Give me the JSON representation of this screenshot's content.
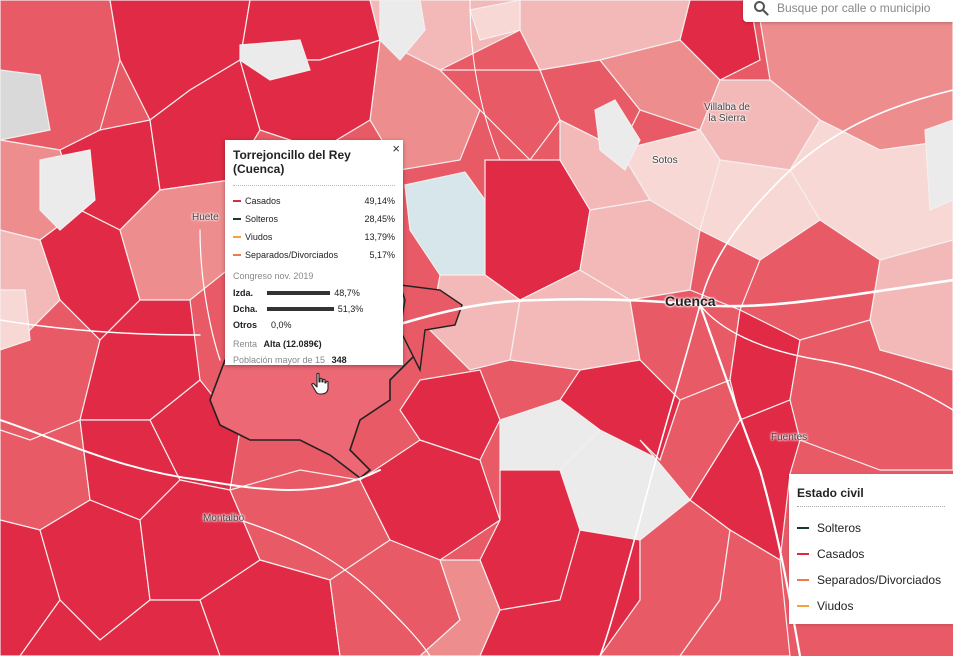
{
  "search": {
    "placeholder": "Busque por calle o municipio",
    "icon": "search-icon"
  },
  "places": [
    {
      "id": "huete",
      "name": "Huete"
    },
    {
      "id": "villalba",
      "name_line1": "Villalba de",
      "name_line2": "la Sierra"
    },
    {
      "id": "sotos",
      "name": "Sotos"
    },
    {
      "id": "cuenca",
      "name": "Cuenca"
    },
    {
      "id": "fuentes",
      "name": "Fuentes"
    },
    {
      "id": "montalbo",
      "name": "Montalbo"
    }
  ],
  "tooltip": {
    "title": "Torrejoncillo del Rey (Cuenca)",
    "close": "×",
    "civil_status": [
      {
        "label": "Casados",
        "value": "49,14%",
        "color": "#e0283e"
      },
      {
        "label": "Solteros",
        "value": "28,45%",
        "color": "#1b3a2f"
      },
      {
        "label": "Viudos",
        "value": "13,79%",
        "color": "#f2a43a"
      },
      {
        "label": "Separados/Divorciados",
        "value": "5,17%",
        "color": "#f07a4a"
      }
    ],
    "election_title": "Congreso nov. 2019",
    "votes": [
      {
        "label": "Izda.",
        "value": "48,7%",
        "pct": 48.7
      },
      {
        "label": "Dcha.",
        "value": "51,3%",
        "pct": 51.3
      },
      {
        "label": "Otros",
        "value": "0,0%",
        "pct": 0
      }
    ],
    "rent_label": "Renta",
    "rent_value": "Alta (12.089€)",
    "population_label": "Población mayor de 15",
    "population_value": "348"
  },
  "legend": {
    "title": "Estado civil",
    "items": [
      {
        "label": "Solteros",
        "color": "#1b3a2f"
      },
      {
        "label": "Casados",
        "color": "#e0283e"
      },
      {
        "label": "Separados/Divorciados",
        "color": "#f07a4a"
      },
      {
        "label": "Viudos",
        "color": "#f2a43a"
      }
    ]
  },
  "colors": {
    "darkest": "#e12a45",
    "dark": "#e85a66",
    "medium": "#ee8d8e",
    "light": "#f3b9b8",
    "lightest": "#f7d8d5",
    "empty": "#ebebeb",
    "highlight_water": "#d6e6ea"
  }
}
